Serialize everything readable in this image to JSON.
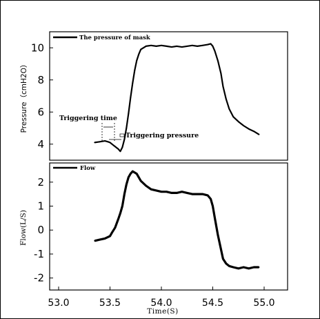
{
  "chart_data": [
    {
      "type": "line",
      "panel": "top",
      "legend": "The pressure of mask",
      "legend_position": "top-left",
      "ylabel": "Pressure（cmH2O）",
      "ylim": [
        3.0,
        11.0
      ],
      "xlim": [
        53.0,
        55.0
      ],
      "yticks": [
        "4",
        "6",
        "8",
        "10"
      ],
      "annotations": [
        {
          "text": "Triggering time",
          "x": 53.58,
          "y": 4.0
        },
        {
          "text": "Triggering pressure",
          "x": 53.62,
          "y": 3.75
        }
      ],
      "series": [
        {
          "name": "The pressure of mask",
          "x": [
            53.35,
            53.4,
            53.45,
            53.48,
            53.5,
            53.52,
            53.55,
            53.58,
            53.6,
            53.62,
            53.64,
            53.66,
            53.68,
            53.7,
            53.72,
            53.74,
            53.76,
            53.78,
            53.8,
            53.85,
            53.9,
            53.95,
            54.0,
            54.05,
            54.1,
            54.15,
            54.2,
            54.25,
            54.3,
            54.35,
            54.4,
            54.45,
            54.48,
            54.5,
            54.52,
            54.55,
            54.58,
            54.6,
            54.63,
            54.66,
            54.7,
            54.75,
            54.8,
            54.85,
            54.9,
            54.95
          ],
          "y": [
            4.1,
            4.15,
            4.2,
            4.15,
            4.1,
            4.0,
            3.85,
            3.7,
            3.55,
            3.8,
            4.3,
            5.0,
            5.9,
            6.9,
            7.8,
            8.6,
            9.2,
            9.6,
            9.9,
            10.1,
            10.15,
            10.1,
            10.15,
            10.1,
            10.05,
            10.1,
            10.05,
            10.1,
            10.15,
            10.1,
            10.15,
            10.2,
            10.25,
            10.1,
            9.8,
            9.2,
            8.4,
            7.6,
            6.8,
            6.2,
            5.7,
            5.4,
            5.15,
            4.95,
            4.8,
            4.6
          ]
        }
      ]
    },
    {
      "type": "line",
      "panel": "bottom",
      "legend": "Flow",
      "legend_position": "top-left",
      "ylabel": "Flow(L/S)",
      "xlabel": "Time(S)",
      "ylim": [
        -2.5,
        2.8
      ],
      "xlim": [
        53.0,
        55.0
      ],
      "yticks": [
        "2",
        "1",
        "0",
        "-1",
        "-2"
      ],
      "xticks": [
        "53.0",
        "53.5",
        "54.0",
        "54.5",
        "55.0"
      ],
      "series": [
        {
          "name": "Flow",
          "x": [
            53.35,
            53.4,
            53.45,
            53.5,
            53.52,
            53.55,
            53.58,
            53.6,
            53.62,
            53.64,
            53.66,
            53.68,
            53.7,
            53.72,
            53.74,
            53.76,
            53.78,
            53.8,
            53.85,
            53.9,
            53.95,
            54.0,
            54.05,
            54.1,
            54.15,
            54.2,
            54.25,
            54.3,
            54.35,
            54.4,
            54.45,
            54.48,
            54.5,
            54.52,
            54.55,
            54.58,
            54.6,
            54.63,
            54.66,
            54.7,
            54.75,
            54.8,
            54.85,
            54.9,
            54.95
          ],
          "y": [
            -0.45,
            -0.4,
            -0.35,
            -0.25,
            -0.1,
            0.1,
            0.45,
            0.7,
            1.0,
            1.5,
            1.9,
            2.2,
            2.35,
            2.45,
            2.4,
            2.35,
            2.2,
            2.05,
            1.85,
            1.7,
            1.65,
            1.6,
            1.6,
            1.55,
            1.55,
            1.6,
            1.55,
            1.5,
            1.5,
            1.5,
            1.45,
            1.3,
            1.0,
            0.5,
            -0.2,
            -0.8,
            -1.2,
            -1.4,
            -1.5,
            -1.55,
            -1.6,
            -1.55,
            -1.6,
            -1.55,
            -1.55
          ]
        }
      ]
    }
  ]
}
